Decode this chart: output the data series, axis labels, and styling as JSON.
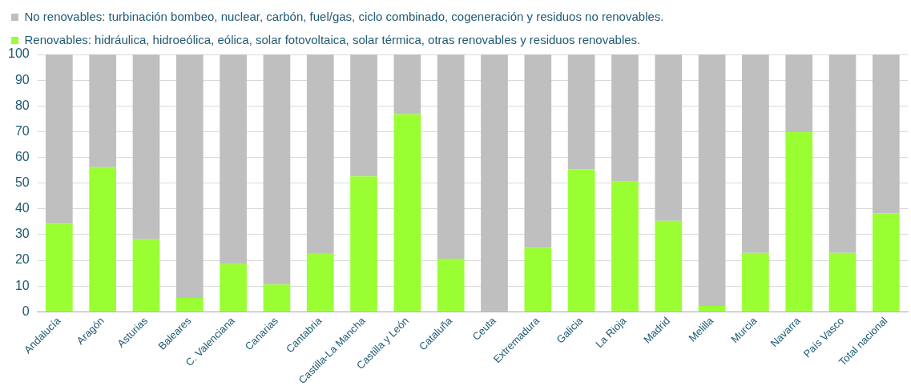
{
  "chart_data": {
    "type": "bar",
    "stacked": true,
    "categories": [
      "Andalucía",
      "Aragón",
      "Asturias",
      "Baleares",
      "C. Valenciana",
      "Canarias",
      "Cantabria",
      "Castilla-La Mancha",
      "Castilla y León",
      "Cataluña",
      "Ceuta",
      "Extremadura",
      "Galicia",
      "La Rioja",
      "Madrid",
      "Melilla",
      "Murcia",
      "Navarra",
      "País Vasco",
      "Total nacional"
    ],
    "series": [
      {
        "name": "Renovables: hidráulica, hidroeólica, eólica, solar fotovoltaica, solar térmica, otras renovables y residuos renovables.",
        "color": "#99ff33",
        "values": [
          34.2,
          56.2,
          28.2,
          5.4,
          18.5,
          10.6,
          22.8,
          52.6,
          76.8,
          20.6,
          0,
          24.8,
          55.4,
          50.6,
          35.3,
          2.3,
          22.9,
          69.8,
          22.9,
          38.3
        ]
      },
      {
        "name": "No renovables: turbinación bombeo, nuclear, carbón, fuel/gas, ciclo combinado, cogeneración y residuos no renovables.",
        "color": "#bfbfbf",
        "values": [
          65.8,
          43.8,
          71.8,
          94.6,
          81.5,
          89.4,
          77.2,
          47.4,
          23.2,
          79.4,
          100,
          75.2,
          44.6,
          49.4,
          64.7,
          97.7,
          77.1,
          30.2,
          77.1,
          61.7
        ]
      }
    ],
    "ylim": [
      0,
      100
    ],
    "yticks": [
      0,
      10,
      20,
      30,
      40,
      50,
      60,
      70,
      80,
      90,
      100
    ],
    "grid": "y",
    "legend": "top"
  }
}
